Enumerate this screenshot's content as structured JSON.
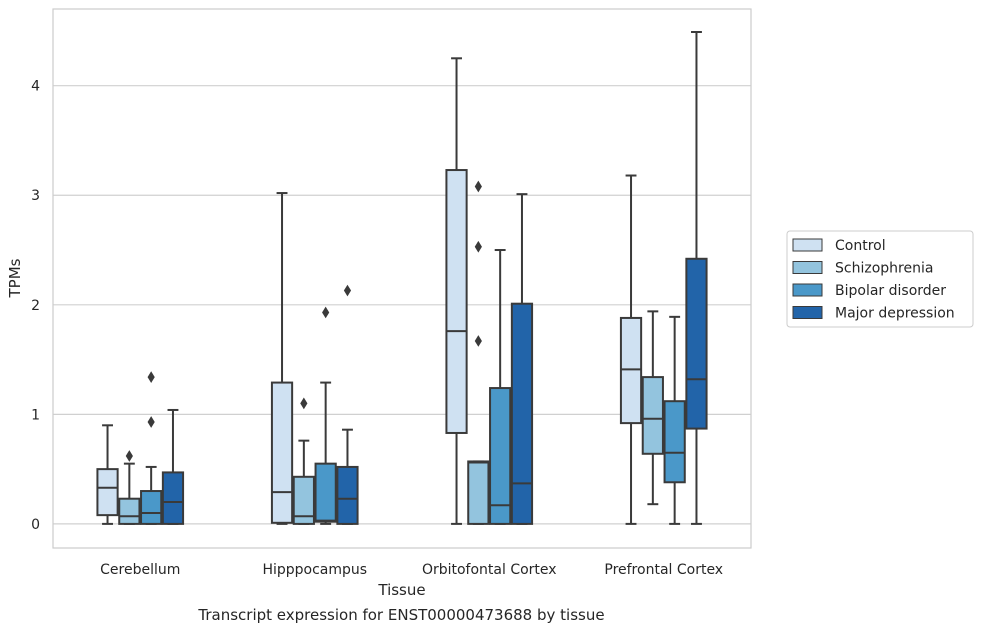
{
  "caption": "Transcript expression for ENST00000473688 by tissue",
  "chart_data": {
    "type": "boxplot",
    "title": "",
    "xlabel": "Tissue",
    "ylabel": "TPMs",
    "ylim": [
      -0.22,
      4.7
    ],
    "yticks": [
      0,
      1,
      2,
      3,
      4
    ],
    "grid": "horizontal",
    "legend_position": "right",
    "categories": [
      "Cerebellum",
      "Hipppocampus",
      "Orbitofontal Cortex",
      "Prefrontal Cortex"
    ],
    "series": [
      {
        "name": "Control",
        "color": "#cfe1f2",
        "boxes": [
          {
            "whislo": 0.0,
            "q1": 0.08,
            "med": 0.33,
            "q3": 0.5,
            "whishi": 0.9,
            "fliers": []
          },
          {
            "whislo": 0.0,
            "q1": 0.01,
            "med": 0.29,
            "q3": 1.29,
            "whishi": 3.02,
            "fliers": []
          },
          {
            "whislo": 0.0,
            "q1": 0.83,
            "med": 1.76,
            "q3": 3.23,
            "whishi": 4.25,
            "fliers": []
          },
          {
            "whislo": 0.0,
            "q1": 0.92,
            "med": 1.41,
            "q3": 1.88,
            "whishi": 3.18,
            "fliers": []
          }
        ]
      },
      {
        "name": "Schizophrenia",
        "color": "#93c4de",
        "boxes": [
          {
            "whislo": 0.0,
            "q1": 0.0,
            "med": 0.07,
            "q3": 0.23,
            "whishi": 0.55,
            "fliers": [
              0.62
            ]
          },
          {
            "whislo": 0.0,
            "q1": 0.0,
            "med": 0.07,
            "q3": 0.43,
            "whishi": 0.76,
            "fliers": [
              1.1
            ]
          },
          {
            "whislo": 0.0,
            "q1": 0.0,
            "med": 0.56,
            "q3": 0.57,
            "whishi": 0.57,
            "fliers": [
              1.67,
              2.53,
              3.08
            ]
          },
          {
            "whislo": 0.18,
            "q1": 0.64,
            "med": 0.96,
            "q3": 1.34,
            "whishi": 1.94,
            "fliers": []
          }
        ]
      },
      {
        "name": "Bipolar disorder",
        "color": "#4a98c9",
        "boxes": [
          {
            "whislo": 0.0,
            "q1": 0.0,
            "med": 0.1,
            "q3": 0.3,
            "whishi": 0.52,
            "fliers": [
              0.93,
              1.34
            ]
          },
          {
            "whislo": 0.0,
            "q1": 0.02,
            "med": 0.03,
            "q3": 0.55,
            "whishi": 1.29,
            "fliers": [
              1.93
            ]
          },
          {
            "whislo": 0.0,
            "q1": 0.0,
            "med": 0.17,
            "q3": 1.24,
            "whishi": 2.5,
            "fliers": []
          },
          {
            "whislo": 0.0,
            "q1": 0.38,
            "med": 0.65,
            "q3": 1.12,
            "whishi": 1.89,
            "fliers": []
          }
        ]
      },
      {
        "name": "Major depression",
        "color": "#2264a9",
        "boxes": [
          {
            "whislo": 0.0,
            "q1": 0.0,
            "med": 0.2,
            "q3": 0.47,
            "whishi": 1.04,
            "fliers": []
          },
          {
            "whislo": 0.0,
            "q1": 0.0,
            "med": 0.23,
            "q3": 0.52,
            "whishi": 0.86,
            "fliers": [
              2.13
            ]
          },
          {
            "whislo": 0.0,
            "q1": 0.0,
            "med": 0.37,
            "q3": 2.01,
            "whishi": 3.01,
            "fliers": []
          },
          {
            "whislo": 0.0,
            "q1": 0.87,
            "med": 1.32,
            "q3": 2.42,
            "whishi": 4.49,
            "fliers": []
          }
        ]
      }
    ]
  }
}
